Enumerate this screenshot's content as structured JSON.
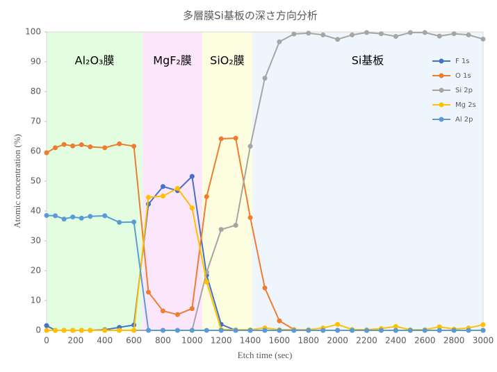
{
  "chart_data": {
    "type": "line",
    "title": "多層膜Si基板の深さ方向分析",
    "x_label": "Etch time (sec)",
    "y_label": "Atomic concentration (%)",
    "x": [
      0,
      60,
      120,
      180,
      240,
      300,
      400,
      500,
      600,
      700,
      800,
      900,
      1000,
      1100,
      1200,
      1300,
      1400,
      1500,
      1600,
      1700,
      1800,
      1900,
      2000,
      2100,
      2200,
      2300,
      2400,
      2500,
      2600,
      2700,
      2800,
      2900,
      3000
    ],
    "series": [
      {
        "name": "F 1s",
        "color": "#4472c4",
        "values": [
          1.6,
          0,
          0,
          0,
          0,
          0,
          0.2,
          1.0,
          1.8,
          42.3,
          48.2,
          46.8,
          51.6,
          18.5,
          2.0,
          0,
          0,
          0,
          0,
          0,
          0,
          0,
          0,
          0,
          0,
          0,
          0,
          0,
          0,
          0,
          0,
          0,
          0
        ]
      },
      {
        "name": "O 1s",
        "color": "#ed7d31",
        "values": [
          59.5,
          61.2,
          62.3,
          61.8,
          62.2,
          61.5,
          61.2,
          62.5,
          61.7,
          12.8,
          6.5,
          5.3,
          7.3,
          44.8,
          64.2,
          64.4,
          37.8,
          14.2,
          3.2,
          0.3,
          0,
          0,
          0,
          0,
          0,
          0,
          0,
          0,
          0,
          0,
          0,
          0,
          0
        ]
      },
      {
        "name": "Si 2p",
        "color": "#a5a5a5",
        "values": [
          0,
          0,
          0,
          0,
          0,
          0,
          0,
          0,
          0,
          0,
          0,
          0,
          0,
          19.5,
          33.8,
          35.2,
          61.7,
          84.5,
          96.7,
          99.3,
          99.6,
          99.0,
          97.5,
          99.0,
          99.8,
          99.4,
          98.5,
          99.8,
          99.8,
          98.6,
          99.4,
          99.0,
          97.6
        ]
      },
      {
        "name": "Mg 2s",
        "color": "#ffc000",
        "values": [
          0,
          0,
          0,
          0,
          0,
          0,
          0,
          0,
          0,
          44.6,
          45.0,
          47.6,
          41.0,
          16.2,
          0.3,
          0.2,
          0.2,
          0.8,
          0.2,
          0.3,
          0.2,
          0.8,
          2.0,
          0.3,
          0.2,
          0.6,
          1.3,
          0.2,
          0.2,
          1.2,
          0.4,
          0.8,
          1.9
        ]
      },
      {
        "name": "Al 2p",
        "color": "#5b9bd5",
        "values": [
          38.5,
          38.4,
          37.3,
          38.0,
          37.6,
          38.2,
          38.4,
          36.2,
          36.3,
          0,
          0,
          0,
          0,
          0,
          0,
          0,
          0,
          0,
          0,
          0,
          0,
          0,
          0,
          0,
          0,
          0,
          0,
          0,
          0,
          0,
          0,
          0,
          0
        ]
      }
    ],
    "regions": [
      {
        "label": "Al₂O₃膜",
        "start": 0,
        "end": 660,
        "color": "#e2fde0"
      },
      {
        "label": "MgF₂膜",
        "start": 660,
        "end": 1070,
        "color": "#fce6fc"
      },
      {
        "label": "SiO₂膜",
        "start": 1070,
        "end": 1414,
        "color": "#fdfde0"
      },
      {
        "label": "Si基板",
        "start": 1414,
        "end": 3000,
        "color": "#eef5fc"
      }
    ],
    "xlim": [
      0,
      3000
    ],
    "xticks": [
      0,
      200,
      400,
      600,
      800,
      1000,
      1200,
      1400,
      1600,
      1800,
      2000,
      2200,
      2400,
      2600,
      2800,
      3000
    ],
    "ylim": [
      0,
      100
    ],
    "yticks": [
      0,
      10,
      20,
      30,
      40,
      50,
      60,
      70,
      80,
      90,
      100
    ],
    "grid": false,
    "legend": "right"
  }
}
